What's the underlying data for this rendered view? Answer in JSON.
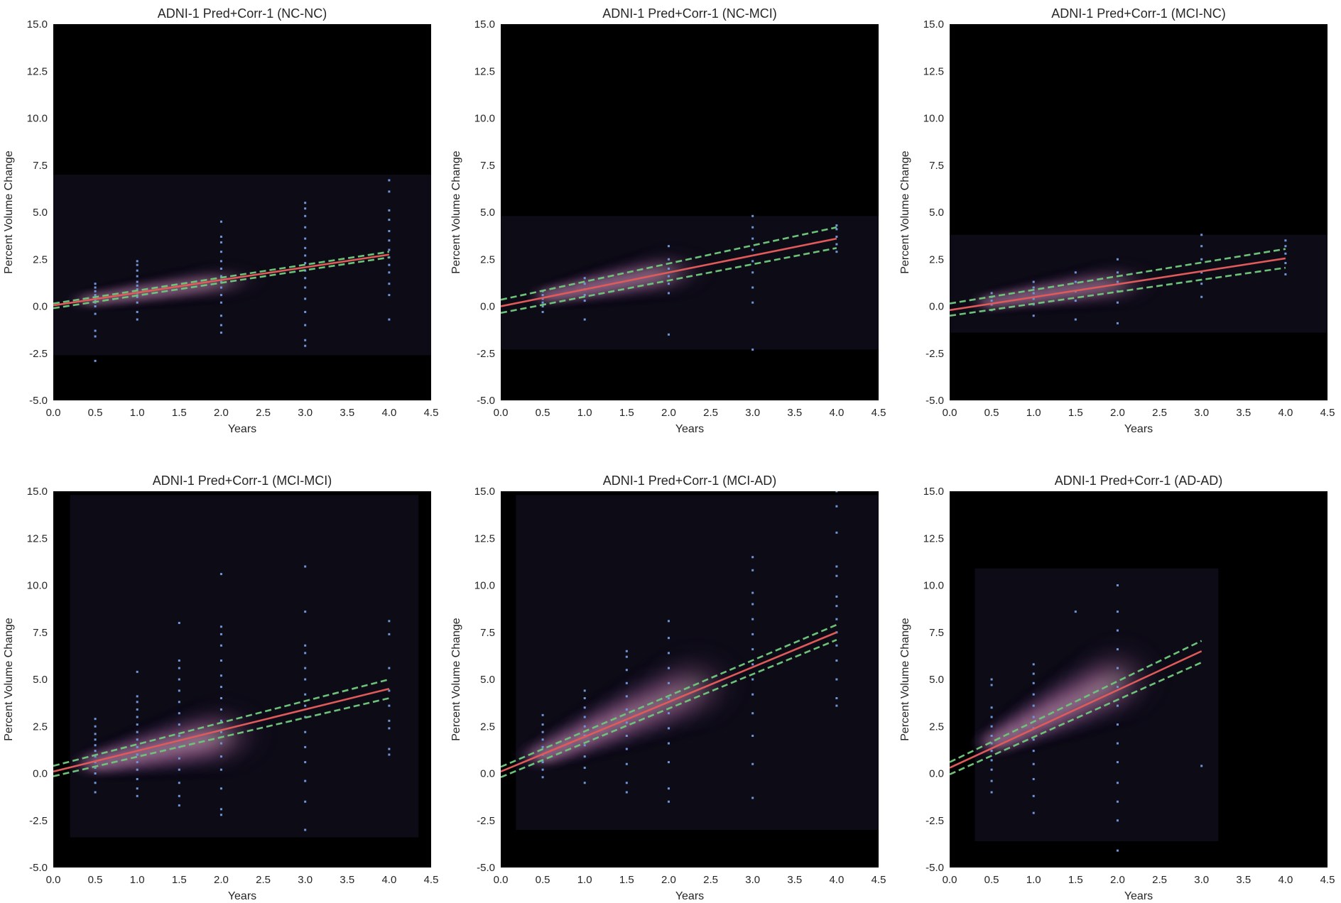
{
  "figure": {
    "background": "#ffffff"
  },
  "colors": {
    "plot_bg": "#000000",
    "fit_line": "#e05a5a",
    "ci_line": "#6dc27a",
    "points": "#6f95d8",
    "density_core": "#f5e6e1",
    "density_mid": "#b06a9c",
    "density_outer": "#2a1f3d",
    "text": "#262626"
  },
  "chart_data": [
    {
      "type": "scatter",
      "title": "ADNI-1 Pred+Corr-1 (NC-NC)",
      "xlabel": "Years",
      "ylabel": "Percent Volume Change",
      "xlim": [
        0.0,
        4.5
      ],
      "ylim": [
        -5.0,
        15.0
      ],
      "xticks": [
        "0.0",
        "0.5",
        "1.0",
        "1.5",
        "2.0",
        "2.5",
        "3.0",
        "3.5",
        "4.0",
        "4.5"
      ],
      "yticks": [
        "-5.0",
        "-2.5",
        "0.0",
        "2.5",
        "5.0",
        "7.5",
        "10.0",
        "12.5",
        "15.0"
      ],
      "grid": false,
      "fit": {
        "x": [
          0.0,
          4.0
        ],
        "y": [
          0.05,
          2.75
        ]
      },
      "ci_upper": {
        "x": [
          0.0,
          4.0
        ],
        "y": [
          0.15,
          2.9
        ]
      },
      "ci_lower": {
        "x": [
          0.0,
          4.0
        ],
        "y": [
          -0.1,
          2.6
        ]
      },
      "points": [
        {
          "x": 0.5,
          "y": [
            -2.9,
            -1.6,
            -1.3,
            -0.4,
            0.0,
            0.2,
            0.3,
            0.4,
            0.5,
            0.6,
            0.8,
            1.0,
            1.2
          ]
        },
        {
          "x": 1.0,
          "y": [
            -0.7,
            -0.3,
            0.2,
            0.5,
            0.7,
            0.9,
            1.1,
            1.3,
            1.6,
            1.9,
            2.2,
            2.4
          ]
        },
        {
          "x": 2.0,
          "y": [
            -1.4,
            -1.0,
            -0.5,
            0.2,
            0.6,
            1.0,
            1.3,
            1.6,
            2.0,
            2.4,
            2.9,
            3.4,
            3.7,
            4.5
          ]
        },
        {
          "x": 3.0,
          "y": [
            -2.1,
            -1.8,
            -1.0,
            -0.3,
            0.4,
            1.0,
            1.5,
            1.9,
            2.3,
            2.7,
            3.1,
            3.6,
            4.2,
            4.8,
            5.2,
            5.5
          ]
        },
        {
          "x": 4.0,
          "y": [
            -0.7,
            0.6,
            1.2,
            1.8,
            2.2,
            2.6,
            3.0,
            3.5,
            4.0,
            4.6,
            5.1,
            6.1,
            6.7
          ]
        }
      ],
      "density": {
        "x0": 0.45,
        "y0": 0.35,
        "x1": 2.0,
        "y1": 1.3,
        "w": 0.32,
        "spread": 0.6,
        "box": [
          0.0,
          4.5,
          -2.6,
          7.0
        ]
      }
    },
    {
      "type": "scatter",
      "title": "ADNI-1 Pred+Corr-1 (NC-MCI)",
      "xlabel": "Years",
      "ylabel": "Percent Volume Change",
      "xlim": [
        0.0,
        4.5
      ],
      "ylim": [
        -5.0,
        15.0
      ],
      "xticks": [
        "0.0",
        "0.5",
        "1.0",
        "1.5",
        "2.0",
        "2.5",
        "3.0",
        "3.5",
        "4.0",
        "4.5"
      ],
      "yticks": [
        "-5.0",
        "-2.5",
        "0.0",
        "2.5",
        "5.0",
        "7.5",
        "10.0",
        "12.5",
        "15.0"
      ],
      "grid": false,
      "fit": {
        "x": [
          0.0,
          4.0
        ],
        "y": [
          0.0,
          3.6
        ]
      },
      "ci_upper": {
        "x": [
          0.0,
          4.0
        ],
        "y": [
          0.35,
          4.2
        ]
      },
      "ci_lower": {
        "x": [
          0.0,
          4.0
        ],
        "y": [
          -0.35,
          3.1
        ]
      },
      "points": [
        {
          "x": 0.5,
          "y": [
            -0.3,
            0.0,
            0.2,
            0.4,
            0.6,
            0.8
          ]
        },
        {
          "x": 1.0,
          "y": [
            -0.7,
            0.3,
            0.6,
            0.9,
            1.2,
            1.5
          ]
        },
        {
          "x": 2.0,
          "y": [
            -1.5,
            0.7,
            1.2,
            1.6,
            2.0,
            2.5,
            3.2
          ]
        },
        {
          "x": 3.0,
          "y": [
            -2.3,
            0.2,
            1.0,
            1.8,
            2.4,
            3.0,
            3.6,
            4.2,
            4.8
          ]
        },
        {
          "x": 4.0,
          "y": [
            2.9,
            3.3,
            3.7,
            4.1,
            4.3
          ]
        }
      ],
      "density": {
        "x0": 0.6,
        "y0": 0.6,
        "x1": 2.0,
        "y1": 1.8,
        "w": 0.3,
        "spread": 0.9,
        "box": [
          0.0,
          4.5,
          -2.3,
          4.8
        ]
      }
    },
    {
      "type": "scatter",
      "title": "ADNI-1 Pred+Corr-1 (MCI-NC)",
      "xlabel": "Years",
      "ylabel": "Percent Volume Change",
      "xlim": [
        0.0,
        4.5
      ],
      "ylim": [
        -5.0,
        15.0
      ],
      "xticks": [
        "0.0",
        "0.5",
        "1.0",
        "1.5",
        "2.0",
        "2.5",
        "3.0",
        "3.5",
        "4.0",
        "4.5"
      ],
      "yticks": [
        "-5.0",
        "-2.5",
        "0.0",
        "2.5",
        "5.0",
        "7.5",
        "10.0",
        "12.5",
        "15.0"
      ],
      "grid": false,
      "fit": {
        "x": [
          0.0,
          4.0
        ],
        "y": [
          -0.2,
          2.55
        ]
      },
      "ci_upper": {
        "x": [
          0.0,
          4.0
        ],
        "y": [
          0.15,
          3.05
        ]
      },
      "ci_lower": {
        "x": [
          0.0,
          4.0
        ],
        "y": [
          -0.5,
          2.05
        ]
      },
      "points": [
        {
          "x": 0.5,
          "y": [
            -0.2,
            0.1,
            0.3,
            0.5,
            0.7
          ]
        },
        {
          "x": 1.0,
          "y": [
            -0.5,
            0.1,
            0.4,
            0.7,
            1.0,
            1.3
          ]
        },
        {
          "x": 1.5,
          "y": [
            -0.7,
            0.3,
            0.8,
            1.3,
            1.8
          ]
        },
        {
          "x": 2.0,
          "y": [
            -0.9,
            0.2,
            0.8,
            1.3,
            1.8,
            2.5
          ]
        },
        {
          "x": 3.0,
          "y": [
            0.5,
            1.2,
            1.8,
            2.5,
            3.2,
            3.8
          ]
        },
        {
          "x": 4.0,
          "y": [
            1.7,
            2.3,
            2.8,
            3.2,
            3.5
          ]
        }
      ],
      "density": {
        "x0": 0.5,
        "y0": 0.25,
        "x1": 2.0,
        "y1": 1.2,
        "w": 0.28,
        "spread": 0.8,
        "box": [
          0.0,
          4.5,
          -1.4,
          3.8
        ]
      }
    },
    {
      "type": "scatter",
      "title": "ADNI-1 Pred+Corr-1 (MCI-MCI)",
      "xlabel": "Years",
      "ylabel": "Percent Volume Change",
      "xlim": [
        0.0,
        4.5
      ],
      "ylim": [
        -5.0,
        15.0
      ],
      "xticks": [
        "0.0",
        "0.5",
        "1.0",
        "1.5",
        "2.0",
        "2.5",
        "3.0",
        "3.5",
        "4.0",
        "4.5"
      ],
      "yticks": [
        "-5.0",
        "-2.5",
        "0.0",
        "2.5",
        "5.0",
        "7.5",
        "10.0",
        "12.5",
        "15.0"
      ],
      "grid": false,
      "fit": {
        "x": [
          0.0,
          4.0
        ],
        "y": [
          0.1,
          4.5
        ]
      },
      "ci_upper": {
        "x": [
          0.0,
          4.0
        ],
        "y": [
          0.4,
          5.0
        ]
      },
      "ci_lower": {
        "x": [
          0.0,
          4.0
        ],
        "y": [
          -0.15,
          4.0
        ]
      },
      "points": [
        {
          "x": 0.5,
          "y": [
            -1.0,
            -0.5,
            0.0,
            0.3,
            0.6,
            0.9,
            1.2,
            1.5,
            1.8,
            2.1,
            2.5,
            2.9
          ]
        },
        {
          "x": 1.0,
          "y": [
            -1.2,
            -0.8,
            -0.3,
            0.2,
            0.6,
            1.0,
            1.4,
            1.8,
            2.2,
            2.6,
            3.0,
            3.4,
            3.8,
            4.1,
            5.4
          ]
        },
        {
          "x": 1.5,
          "y": [
            -1.7,
            -1.2,
            -0.5,
            0.2,
            0.8,
            1.4,
            2.0,
            2.6,
            3.2,
            3.8,
            4.4,
            5.0,
            5.6,
            6.0,
            8.0
          ]
        },
        {
          "x": 2.0,
          "y": [
            -2.2,
            -1.9,
            -0.8,
            0.2,
            0.9,
            1.6,
            2.2,
            2.8,
            3.4,
            4.0,
            4.6,
            5.2,
            6.0,
            6.8,
            7.4,
            7.8,
            10.6
          ]
        },
        {
          "x": 3.0,
          "y": [
            -3.0,
            -1.5,
            -0.4,
            0.6,
            1.4,
            2.2,
            3.0,
            3.6,
            4.2,
            5.0,
            5.6,
            6.4,
            6.8,
            8.6,
            11.0
          ]
        },
        {
          "x": 4.0,
          "y": [
            1.0,
            1.3,
            2.4,
            2.8,
            3.6,
            4.4,
            5.6,
            7.4,
            8.1
          ]
        }
      ],
      "density": {
        "x0": 0.55,
        "y0": 0.6,
        "x1": 2.0,
        "y1": 2.0,
        "w": 0.38,
        "spread": 1.4,
        "box": [
          0.2,
          4.35,
          -3.4,
          14.8
        ]
      }
    },
    {
      "type": "scatter",
      "title": "ADNI-1 Pred+Corr-1 (MCI-AD)",
      "xlabel": "Years",
      "ylabel": "Percent Volume Change",
      "xlim": [
        0.0,
        4.5
      ],
      "ylim": [
        -5.0,
        15.0
      ],
      "xticks": [
        "0.0",
        "0.5",
        "1.0",
        "1.5",
        "2.0",
        "2.5",
        "3.0",
        "3.5",
        "4.0",
        "4.5"
      ],
      "yticks": [
        "-5.0",
        "-2.5",
        "0.0",
        "2.5",
        "5.0",
        "7.5",
        "10.0",
        "12.5",
        "15.0"
      ],
      "grid": false,
      "fit": {
        "x": [
          0.0,
          4.0
        ],
        "y": [
          0.1,
          7.5
        ]
      },
      "ci_upper": {
        "x": [
          0.0,
          4.0
        ],
        "y": [
          0.35,
          7.9
        ]
      },
      "ci_lower": {
        "x": [
          0.0,
          4.0
        ],
        "y": [
          -0.2,
          7.1
        ]
      },
      "points": [
        {
          "x": 0.5,
          "y": [
            -0.2,
            0.2,
            0.6,
            1.0,
            1.4,
            1.8,
            2.2,
            2.6,
            3.1
          ]
        },
        {
          "x": 1.0,
          "y": [
            -0.5,
            0.3,
            0.9,
            1.5,
            2.0,
            2.5,
            3.0,
            3.5,
            4.0,
            4.4
          ]
        },
        {
          "x": 1.5,
          "y": [
            -1.0,
            -0.5,
            0.5,
            1.3,
            2.0,
            2.7,
            3.4,
            4.1,
            4.8,
            5.5,
            6.2,
            6.5
          ]
        },
        {
          "x": 2.0,
          "y": [
            -1.5,
            -0.8,
            0.6,
            1.6,
            2.4,
            3.2,
            4.0,
            4.8,
            5.6,
            6.4,
            7.2,
            8.1
          ]
        },
        {
          "x": 3.0,
          "y": [
            -1.3,
            0.5,
            2.0,
            3.2,
            4.2,
            5.0,
            5.8,
            6.6,
            7.4,
            8.2,
            9.0,
            9.6,
            10.8,
            11.5
          ]
        },
        {
          "x": 4.0,
          "y": [
            3.6,
            4.0,
            5.0,
            6.0,
            6.8,
            7.5,
            8.2,
            8.9,
            9.4,
            10.5,
            11.0,
            12.8,
            14.2,
            15.0
          ]
        }
      ],
      "density": {
        "x0": 0.55,
        "y0": 1.1,
        "x1": 2.3,
        "y1": 4.6,
        "w": 0.4,
        "spread": 1.6,
        "box": [
          0.18,
          4.5,
          -3.0,
          14.8
        ]
      }
    },
    {
      "type": "scatter",
      "title": "ADNI-1 Pred+Corr-1 (AD-AD)",
      "xlabel": "Years",
      "ylabel": "Percent Volume Change",
      "xlim": [
        0.0,
        4.5
      ],
      "ylim": [
        -5.0,
        15.0
      ],
      "xticks": [
        "0.0",
        "0.5",
        "1.0",
        "1.5",
        "2.0",
        "2.5",
        "3.0",
        "3.5",
        "4.0",
        "4.5"
      ],
      "yticks": [
        "-5.0",
        "-2.5",
        "0.0",
        "2.5",
        "5.0",
        "7.5",
        "10.0",
        "12.5",
        "15.0"
      ],
      "grid": false,
      "fit": {
        "x": [
          0.0,
          3.0
        ],
        "y": [
          0.3,
          6.5
        ]
      },
      "ci_upper": {
        "x": [
          0.0,
          3.0
        ],
        "y": [
          0.6,
          7.05
        ]
      },
      "ci_lower": {
        "x": [
          0.0,
          3.0
        ],
        "y": [
          -0.05,
          5.9
        ]
      },
      "points": [
        {
          "x": 0.5,
          "y": [
            -1.0,
            -0.4,
            0.2,
            0.7,
            1.2,
            1.6,
            2.0,
            2.5,
            3.0,
            3.5,
            4.7,
            5.0
          ]
        },
        {
          "x": 1.0,
          "y": [
            -2.1,
            -1.2,
            -0.3,
            0.5,
            1.2,
            1.8,
            2.4,
            3.0,
            3.6,
            4.2,
            4.8,
            5.3,
            5.8
          ]
        },
        {
          "x": 1.5,
          "y": [
            8.6
          ]
        },
        {
          "x": 2.0,
          "y": [
            -4.1,
            -2.5,
            -1.5,
            -0.5,
            0.6,
            1.6,
            2.6,
            3.6,
            4.6,
            5.6,
            6.6,
            7.6,
            8.6,
            10.0
          ]
        },
        {
          "x": 3.0,
          "y": [
            0.4
          ]
        }
      ],
      "density": {
        "x0": 0.6,
        "y0": 1.8,
        "x1": 2.0,
        "y1": 5.0,
        "w": 0.36,
        "spread": 1.6,
        "box": [
          0.3,
          3.2,
          -3.6,
          10.9
        ]
      }
    }
  ]
}
